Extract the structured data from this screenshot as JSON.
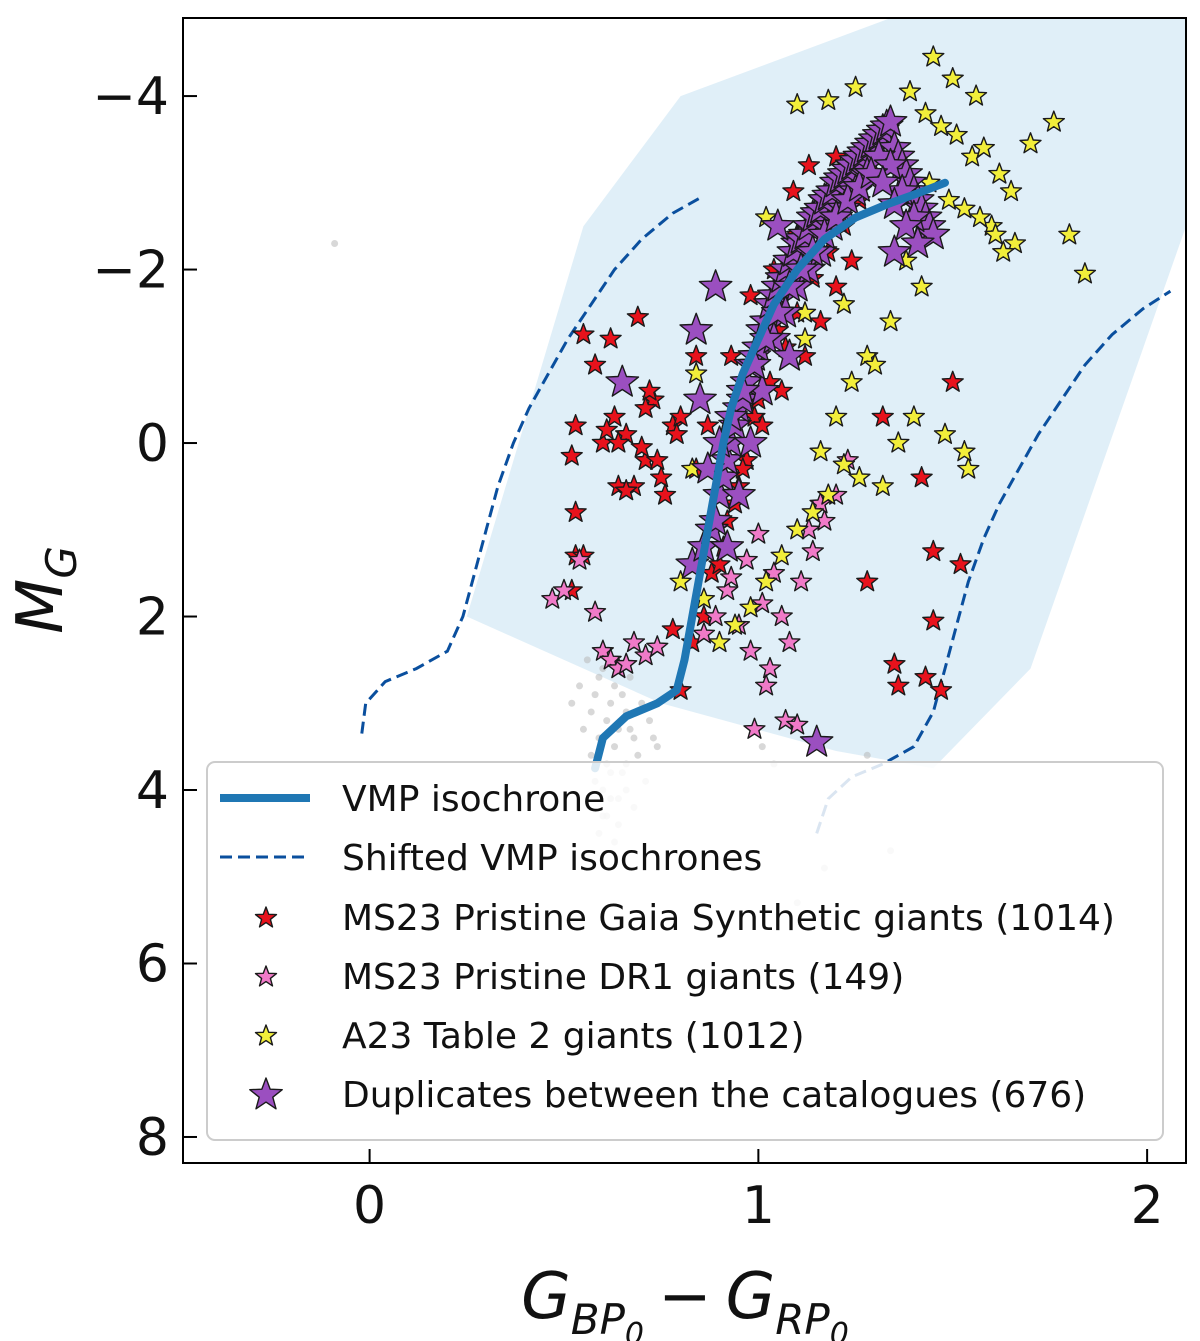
{
  "chart_data": {
    "type": "scatter",
    "title": "",
    "xlabel": "G_BP0 − G_RP0",
    "ylabel": "M_G",
    "xlabel_parts": {
      "a": "G",
      "a_sub": "BP",
      "a_subsub": "0",
      "op": "−",
      "b": "G",
      "b_sub": "RP",
      "b_subsub": "0"
    },
    "ylabel_parts": {
      "main": "M",
      "sub": "G"
    },
    "xlim": [
      -0.48,
      2.1
    ],
    "ylim": [
      8.3,
      -4.9
    ],
    "y_inverted": true,
    "x_ticks": [
      0,
      1,
      2
    ],
    "y_ticks": [
      -4,
      -2,
      0,
      2,
      4,
      6,
      8
    ],
    "x_tick_labels": [
      "0",
      "1",
      "2"
    ],
    "y_tick_labels": [
      "−4",
      "−2",
      "0",
      "2",
      "4",
      "6",
      "8"
    ],
    "grid": false,
    "legend_position": "lower-center",
    "colors": {
      "isochrone": "#1f77b4",
      "shifted": "#0a4f9e",
      "band": "#d6e9f6",
      "red": "#e8121c",
      "pink": "#f07ac8",
      "yellow": "#f2ee3a",
      "purple": "#9b4fc0",
      "background_points": "#b8b8b8"
    },
    "band_polygon": [
      [
        0.25,
        2.0
      ],
      [
        0.75,
        3.0
      ],
      [
        1.2,
        3.55
      ],
      [
        1.45,
        3.75
      ],
      [
        1.7,
        2.6
      ],
      [
        2.1,
        -2.5
      ],
      [
        2.1,
        -5.0
      ],
      [
        1.4,
        -5.0
      ],
      [
        0.8,
        -4.0
      ],
      [
        0.55,
        -2.5
      ],
      [
        0.35,
        0.5
      ],
      [
        0.25,
        2.0
      ]
    ],
    "series": [
      {
        "name": "VMP isochrone",
        "kind": "line",
        "x": [
          0.58,
          0.6,
          0.66,
          0.74,
          0.79,
          0.81,
          0.83,
          0.85,
          0.87,
          0.89,
          0.91,
          0.93,
          0.96,
          1.0,
          1.04,
          1.1,
          1.17,
          1.25,
          1.33,
          1.41,
          1.48
        ],
        "y": [
          3.75,
          3.4,
          3.15,
          3.0,
          2.85,
          2.5,
          2.0,
          1.5,
          1.0,
          0.5,
          0.0,
          -0.4,
          -0.8,
          -1.2,
          -1.6,
          -2.0,
          -2.35,
          -2.6,
          -2.75,
          -2.88,
          -3.0
        ]
      },
      {
        "name": "Shifted VMP isochrones",
        "kind": "dashed",
        "curves": [
          {
            "x": [
              -0.02,
              -0.01,
              0.04,
              0.12,
              0.2,
              0.24,
              0.27,
              0.3,
              0.33,
              0.37,
              0.41,
              0.46,
              0.51,
              0.57,
              0.63,
              0.7,
              0.78,
              0.86
            ],
            "y": [
              3.35,
              3.0,
              2.75,
              2.6,
              2.4,
              2.0,
              1.5,
              1.0,
              0.5,
              0.0,
              -0.4,
              -0.8,
              -1.2,
              -1.6,
              -2.0,
              -2.35,
              -2.65,
              -2.85
            ]
          },
          {
            "x": [
              1.15,
              1.18,
              1.24,
              1.32,
              1.4,
              1.45,
              1.48,
              1.51,
              1.54,
              1.58,
              1.62,
              1.67,
              1.72,
              1.78,
              1.84,
              1.91,
              1.99,
              2.06
            ],
            "y": [
              4.5,
              4.1,
              3.85,
              3.7,
              3.5,
              3.1,
              2.6,
              2.1,
              1.6,
              1.1,
              0.7,
              0.3,
              -0.1,
              -0.5,
              -0.9,
              -1.25,
              -1.55,
              -1.75
            ]
          }
        ]
      },
      {
        "name": "MS23 Pristine Gaia Synthetic giants (1014)",
        "kind": "star-small",
        "color": "#e8121c",
        "x": [
          0.53,
          0.52,
          0.53,
          0.53,
          0.52,
          0.55,
          0.58,
          0.6,
          0.63,
          0.64,
          0.62,
          0.66,
          0.69,
          0.71,
          0.73,
          0.75,
          0.78,
          0.68,
          0.7,
          0.72,
          0.76,
          0.8,
          0.55,
          1.28,
          1.35,
          1.45,
          1.47,
          1.52,
          1.42,
          1.45,
          1.5,
          1.36,
          1.43,
          1.32,
          0.78,
          0.83,
          0.86,
          0.88,
          0.8,
          0.91,
          0.94,
          0.97,
          0.99,
          1.03,
          1.07,
          1.1,
          1.14,
          1.18,
          1.22,
          1.26,
          1.3,
          0.92,
          0.96,
          1.01,
          1.06,
          1.12,
          1.16,
          1.2,
          1.24,
          0.9,
          0.95,
          1.0,
          1.05,
          1.1,
          1.15,
          1.2,
          0.87,
          0.93,
          0.98,
          1.04,
          1.09,
          1.13,
          0.79,
          0.84,
          0.74,
          0.71,
          0.66,
          0.64,
          0.61,
          0.84
        ],
        "y": [
          -0.2,
          0.15,
          0.8,
          1.3,
          1.7,
          1.3,
          -0.9,
          0.0,
          -0.3,
          0.5,
          -1.2,
          -0.1,
          -1.45,
          0.2,
          -0.5,
          0.4,
          -0.2,
          0.5,
          0.05,
          -0.6,
          0.6,
          -0.3,
          -1.25,
          1.6,
          2.55,
          2.05,
          2.85,
          1.4,
          0.4,
          1.25,
          -0.7,
          2.8,
          2.7,
          -0.3,
          2.15,
          2.3,
          2.0,
          1.5,
          2.85,
          1.2,
          0.7,
          0.2,
          -0.3,
          -0.7,
          -1.1,
          -1.5,
          -1.9,
          -2.2,
          -2.5,
          -2.8,
          -3.1,
          0.9,
          0.3,
          -0.2,
          -0.6,
          -1.0,
          -1.4,
          -1.8,
          -2.1,
          1.4,
          0.5,
          -0.5,
          -1.3,
          -2.4,
          -2.7,
          -3.3,
          -0.2,
          -1.0,
          -1.7,
          -2.0,
          -2.9,
          -3.2,
          -0.1,
          0.3,
          0.2,
          -0.4,
          0.55,
          0.0,
          -0.15,
          -1.0
        ]
      },
      {
        "name": "MS23 Pristine DR1 giants (149)",
        "kind": "star-small",
        "color": "#f07ac8",
        "x": [
          0.47,
          0.5,
          0.54,
          0.6,
          0.62,
          0.64,
          0.66,
          0.68,
          0.71,
          0.74,
          0.58,
          0.86,
          0.89,
          0.92,
          0.95,
          0.98,
          1.01,
          1.04,
          1.06,
          1.08,
          1.11,
          1.14,
          1.17,
          1.2,
          1.23,
          1.03,
          1.07,
          1.1,
          0.93,
          0.97,
          1.0,
          1.13,
          1.16,
          0.99,
          1.02
        ],
        "y": [
          1.8,
          1.7,
          1.35,
          2.4,
          2.5,
          2.6,
          2.55,
          2.3,
          2.45,
          2.35,
          1.95,
          2.2,
          2.0,
          1.7,
          2.1,
          2.4,
          1.85,
          1.5,
          2.0,
          2.3,
          1.6,
          1.25,
          0.9,
          0.6,
          0.2,
          2.6,
          3.2,
          3.25,
          1.55,
          1.35,
          1.05,
          1.0,
          0.7,
          3.3,
          2.8
        ]
      },
      {
        "name": "A23 Table 2 giants (1012)",
        "kind": "star-small",
        "color": "#f2ee3a",
        "x": [
          1.02,
          1.1,
          1.18,
          1.25,
          1.3,
          1.35,
          1.39,
          1.43,
          1.47,
          1.51,
          1.55,
          1.58,
          1.62,
          1.65,
          1.53,
          1.6,
          1.66,
          1.7,
          1.76,
          1.8,
          1.84,
          1.45,
          1.5,
          1.56,
          1.38,
          1.42,
          1.34,
          1.28,
          1.24,
          1.2,
          1.16,
          1.4,
          1.48,
          1.54,
          1.36,
          1.32,
          1.26,
          1.22,
          1.18,
          1.14,
          1.1,
          1.06,
          1.02,
          0.98,
          0.94,
          0.9,
          0.86,
          0.83,
          1.12,
          1.44,
          1.49,
          1.57,
          1.61,
          1.63,
          1.12,
          1.22,
          1.3,
          1.08,
          1.16,
          0.84,
          0.8,
          1.53
        ],
        "y": [
          -2.6,
          -3.9,
          -3.95,
          -4.1,
          -3.5,
          -3.2,
          -4.05,
          -3.8,
          -3.65,
          -3.55,
          -3.3,
          -3.4,
          -3.1,
          -2.9,
          -2.7,
          -2.5,
          -2.3,
          -3.45,
          -3.7,
          -2.4,
          -1.95,
          -4.45,
          -4.2,
          -4.0,
          -2.1,
          -1.8,
          -1.4,
          -1.0,
          -0.7,
          -0.3,
          0.1,
          -0.3,
          -0.1,
          0.3,
          0.0,
          0.5,
          0.4,
          0.25,
          0.6,
          0.8,
          1.0,
          1.3,
          1.6,
          1.9,
          2.1,
          2.3,
          1.8,
          0.3,
          -1.2,
          -3.0,
          -2.8,
          -2.6,
          -2.4,
          -2.2,
          -1.5,
          -1.6,
          -0.9,
          -2.0,
          -2.8,
          -0.8,
          1.6,
          0.1
        ]
      },
      {
        "name": "Duplicates between the catalogues (676)",
        "kind": "star-large",
        "color": "#9b4fc0",
        "x": [
          0.83,
          0.86,
          0.88,
          0.89,
          0.9,
          0.91,
          0.92,
          0.93,
          0.94,
          0.95,
          0.96,
          0.97,
          0.98,
          0.99,
          1.0,
          1.01,
          1.02,
          1.03,
          1.04,
          1.05,
          1.06,
          1.07,
          1.08,
          1.09,
          1.1,
          1.11,
          1.12,
          1.13,
          1.14,
          1.15,
          1.16,
          1.17,
          1.18,
          1.19,
          1.2,
          1.21,
          1.22,
          1.23,
          1.24,
          1.25,
          1.26,
          1.27,
          1.28,
          1.29,
          1.3,
          1.31,
          1.32,
          1.33,
          1.34,
          1.35,
          1.36,
          1.37,
          1.38,
          1.39,
          1.4,
          1.41,
          1.42,
          1.43,
          1.44,
          1.45,
          0.92,
          0.95,
          0.98,
          1.01,
          1.04,
          1.07,
          1.1,
          1.13,
          1.16,
          1.19,
          1.22,
          1.25,
          1.28,
          1.31,
          1.34,
          1.37,
          1.4,
          0.87,
          0.9,
          0.93,
          0.96,
          0.99,
          1.02,
          1.05,
          1.08,
          1.11,
          1.14,
          1.17,
          1.2,
          1.23,
          1.26,
          1.29,
          1.32,
          1.35,
          1.38,
          1.41,
          0.65,
          0.84,
          1.15,
          1.05,
          1.08,
          1.35,
          0.85,
          0.89
        ],
        "y": [
          1.4,
          1.2,
          1.0,
          0.9,
          0.6,
          0.4,
          0.2,
          0.0,
          -0.2,
          -0.4,
          -0.5,
          -0.7,
          -0.9,
          -1.0,
          -1.1,
          -1.3,
          -1.4,
          -1.6,
          -1.7,
          -1.8,
          -1.9,
          -2.0,
          -2.1,
          -2.2,
          -2.3,
          -2.35,
          -2.4,
          -2.5,
          -2.6,
          -2.65,
          -2.7,
          -2.8,
          -2.85,
          -2.9,
          -3.0,
          -3.05,
          -3.1,
          -3.15,
          -3.2,
          -3.25,
          -3.3,
          -3.35,
          -3.4,
          -3.45,
          -3.5,
          -3.55,
          -3.6,
          -3.65,
          -3.7,
          -3.4,
          -3.3,
          -3.2,
          -3.1,
          -3.0,
          -2.9,
          -2.8,
          -2.7,
          -2.6,
          -2.5,
          -2.4,
          1.2,
          0.6,
          0.0,
          -0.6,
          -1.2,
          -1.5,
          -1.8,
          -2.0,
          -2.2,
          -2.5,
          -2.7,
          -2.9,
          -3.1,
          -3.3,
          -3.2,
          -2.9,
          -2.6,
          0.3,
          0.0,
          -0.3,
          -0.6,
          -0.9,
          -1.2,
          -1.5,
          -1.8,
          -2.0,
          -2.2,
          -2.4,
          -2.6,
          -2.8,
          -2.95,
          -3.1,
          -3.0,
          -2.75,
          -2.5,
          -2.3,
          -0.7,
          -1.3,
          3.45,
          -2.5,
          -1.0,
          -2.2,
          -0.5,
          -1.8
        ]
      }
    ],
    "background_points": {
      "x": [
        -0.09,
        0.52,
        0.54,
        0.56,
        0.57,
        0.58,
        0.59,
        0.6,
        0.61,
        0.62,
        0.63,
        0.64,
        0.65,
        0.66,
        0.67,
        0.68,
        0.7,
        0.72,
        0.74,
        0.55,
        0.57,
        0.59,
        0.61,
        0.63,
        0.65,
        0.67,
        0.69,
        0.71,
        0.73,
        0.58,
        0.6,
        0.62,
        0.64,
        0.66,
        0.68,
        0.6,
        0.62,
        0.64,
        0.66,
        0.59,
        0.61,
        0.63,
        1.1,
        1.17,
        1.01,
        1.34,
        1.28,
        1.04
      ],
      "y": [
        -2.3,
        3.0,
        2.8,
        2.5,
        3.1,
        2.9,
        2.7,
        2.6,
        3.2,
        3.0,
        2.8,
        3.3,
        2.9,
        3.1,
        2.7,
        3.4,
        3.0,
        3.2,
        3.5,
        3.3,
        3.6,
        3.4,
        3.7,
        3.5,
        3.8,
        3.3,
        3.6,
        3.9,
        3.4,
        3.9,
        4.0,
        3.8,
        4.1,
        3.7,
        4.2,
        4.3,
        4.1,
        4.4,
        4.0,
        4.5,
        4.3,
        4.6,
        5.3,
        4.9,
        3.5,
        4.7,
        3.6,
        3.7
      ]
    }
  }
}
